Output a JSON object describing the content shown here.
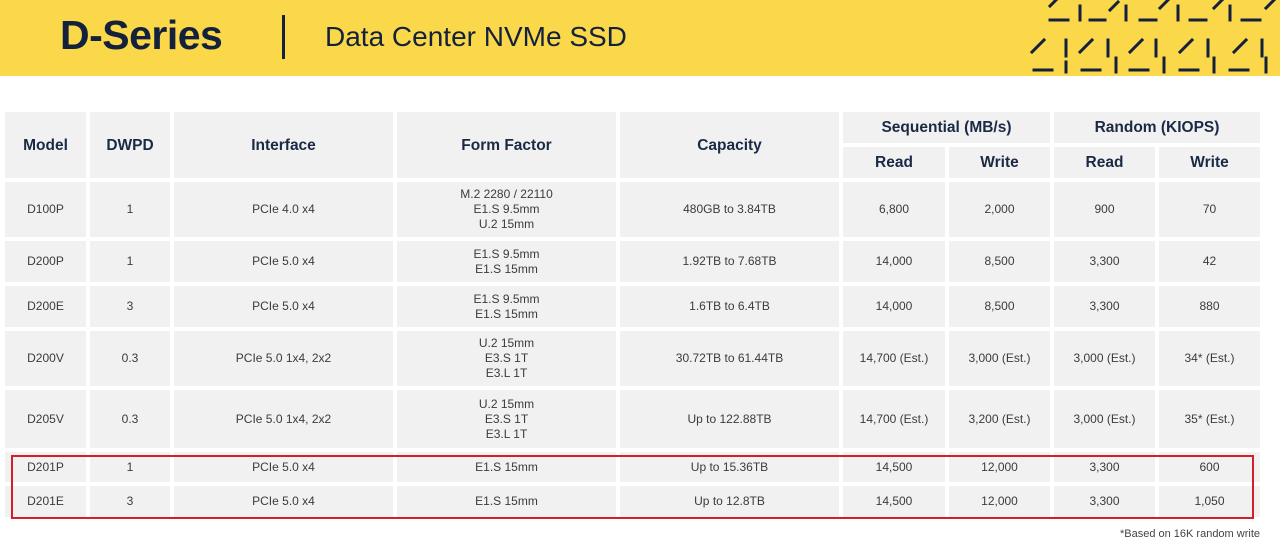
{
  "header": {
    "brand": "D-Series",
    "subtitle": "Data Center NVMe SSD"
  },
  "table": {
    "columns": {
      "model": "Model",
      "dwpd": "DWPD",
      "interface": "Interface",
      "form_factor": "Form Factor",
      "capacity": "Capacity",
      "sequential": "Sequential (MB/s)",
      "random": "Random (KIOPS)",
      "seq_read": "Read",
      "seq_write": "Write",
      "rnd_read": "Read",
      "rnd_write": "Write"
    },
    "rows": [
      {
        "model": "D100P",
        "dwpd": "1",
        "interface": "PCIe 4.0 x4",
        "form_factor": [
          "M.2 2280 / 22110",
          "E1.S 9.5mm",
          "U.2 15mm"
        ],
        "capacity": "480GB to 3.84TB",
        "seq_read": "6,800",
        "seq_write": "2,000",
        "rnd_read": "900",
        "rnd_write": "70"
      },
      {
        "model": "D200P",
        "dwpd": "1",
        "interface": "PCIe 5.0 x4",
        "form_factor": [
          "E1.S 9.5mm",
          "E1.S 15mm"
        ],
        "capacity": "1.92TB to 7.68TB",
        "seq_read": "14,000",
        "seq_write": "8,500",
        "rnd_read": "3,300",
        "rnd_write": "42"
      },
      {
        "model": "D200E",
        "dwpd": "3",
        "interface": "PCIe 5.0 x4",
        "form_factor": [
          "E1.S 9.5mm",
          "E1.S 15mm"
        ],
        "capacity": "1.6TB to 6.4TB",
        "seq_read": "14,000",
        "seq_write": "8,500",
        "rnd_read": "3,300",
        "rnd_write": "880"
      },
      {
        "model": "D200V",
        "dwpd": "0.3",
        "interface": "PCIe 5.0 1x4, 2x2",
        "form_factor": [
          "U.2 15mm",
          "E3.S 1T",
          "E3.L 1T"
        ],
        "capacity": "30.72TB to 61.44TB",
        "seq_read": "14,700 (Est.)",
        "seq_write": "3,000 (Est.)",
        "rnd_read": "3,000 (Est.)",
        "rnd_write": "34* (Est.)"
      },
      {
        "model": "D205V",
        "dwpd": "0.3",
        "interface": "PCIe 5.0 1x4, 2x2",
        "form_factor": [
          "U.2 15mm",
          "E3.S 1T",
          "E3.L 1T"
        ],
        "capacity": "Up to 122.88TB",
        "seq_read": "14,700 (Est.)",
        "seq_write": "3,200 (Est.)",
        "rnd_read": "3,000 (Est.)",
        "rnd_write": "35* (Est.)"
      },
      {
        "model": "D201P",
        "dwpd": "1",
        "interface": "PCIe 5.0 x4",
        "form_factor": [
          "E1.S 15mm"
        ],
        "capacity": "Up to 15.36TB",
        "seq_read": "14,500",
        "seq_write": "12,000",
        "rnd_read": "3,300",
        "rnd_write": "600"
      },
      {
        "model": "D201E",
        "dwpd": "3",
        "interface": "PCIe 5.0 x4",
        "form_factor": [
          "E1.S 15mm"
        ],
        "capacity": "Up to 12.8TB",
        "seq_read": "14,500",
        "seq_write": "12,000",
        "rnd_read": "3,300",
        "rnd_write": "1,050"
      }
    ]
  },
  "footnote": "*Based on 16K random write",
  "colors": {
    "banner": "#fbd84a",
    "navy": "#14213d",
    "highlight": "#d21f2a",
    "cell": "#f1f1f1"
  }
}
